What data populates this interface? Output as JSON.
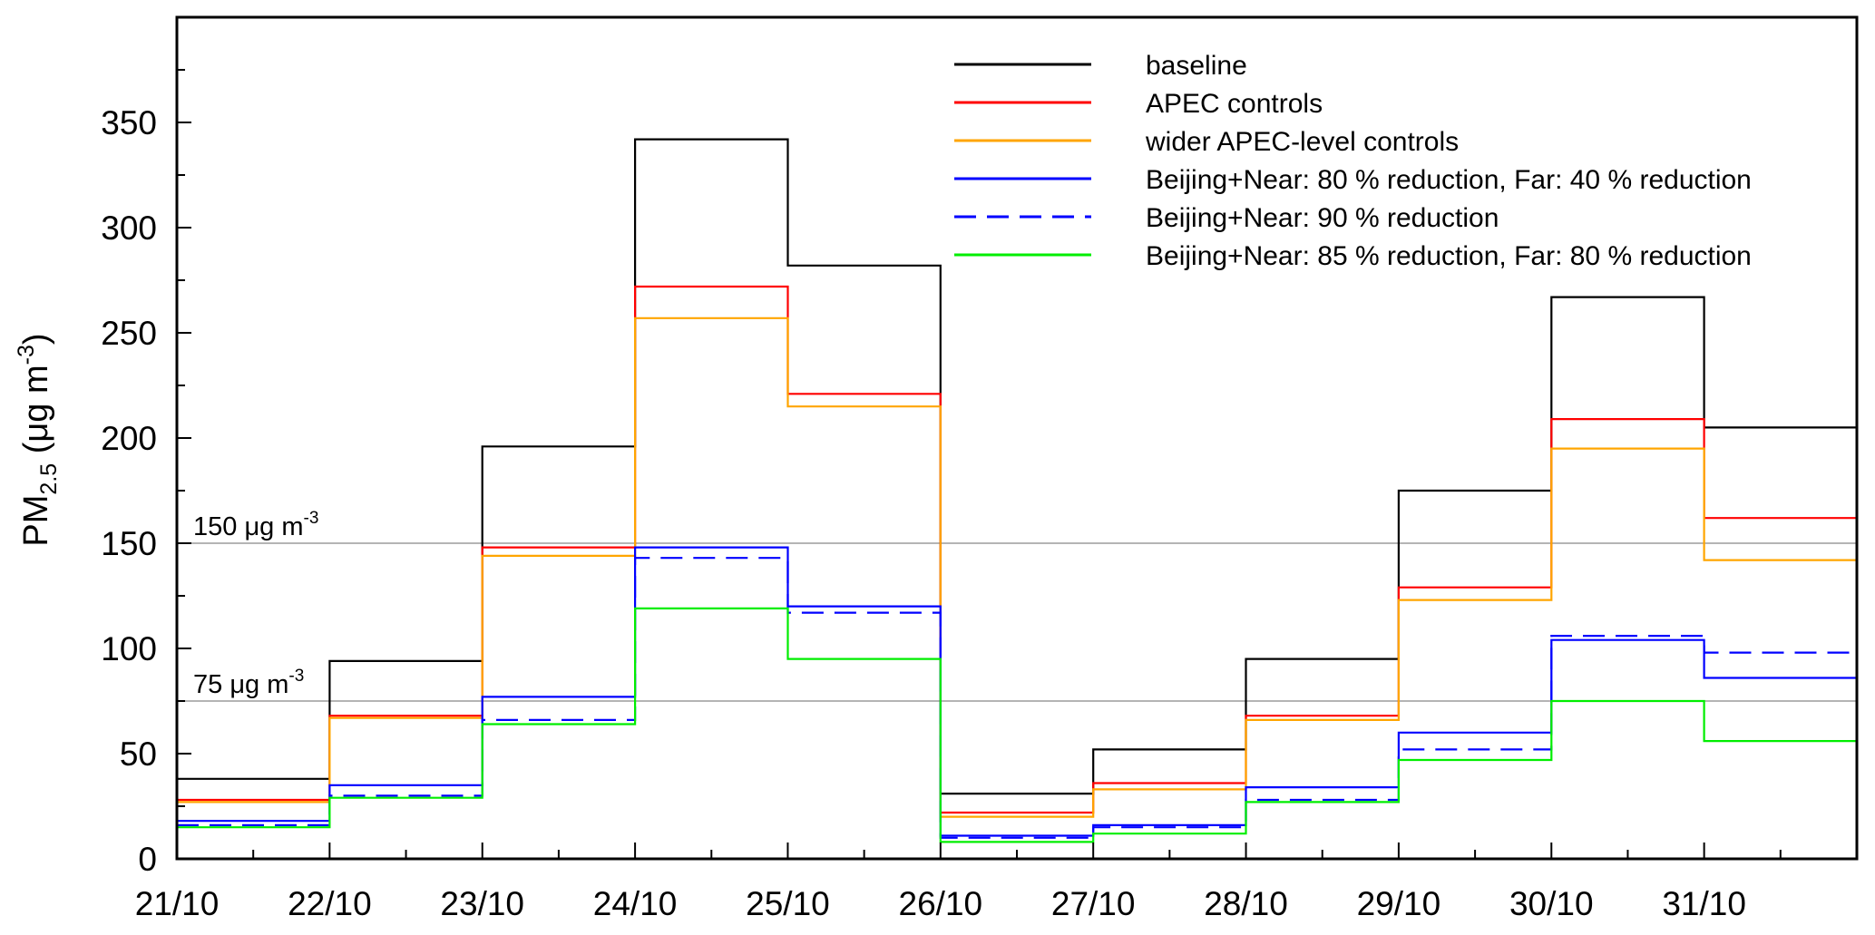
{
  "chart_data": {
    "type": "line",
    "title": "",
    "xlabel": "",
    "ylabel": {
      "main": "PM",
      "subscript": "2.5",
      "unit_open": " (",
      "unit_mu": "μ",
      "unit_g": "g m",
      "unit_exp": "-3",
      "unit_close": ")"
    },
    "ylim": [
      0,
      400
    ],
    "yticks": [
      0,
      50,
      100,
      150,
      200,
      250,
      300,
      350
    ],
    "xlim": [
      0,
      11
    ],
    "x_tick_labels": [
      "21/10",
      "22/10",
      "23/10",
      "24/10",
      "25/10",
      "26/10",
      "27/10",
      "28/10",
      "29/10",
      "30/10",
      "31/10"
    ],
    "grid": false,
    "legend_position": "top-right",
    "reference_lines": [
      {
        "value": 150,
        "label_num": "150 ",
        "label_mu": "μ",
        "label_unit": "g m",
        "label_exp": "-3",
        "color": "#b4b4b4"
      },
      {
        "value": 75,
        "label_num": "75 ",
        "label_mu": "μ",
        "label_unit": "g m",
        "label_exp": "-3",
        "color": "#b4b4b4"
      }
    ],
    "series": [
      {
        "name": "baseline",
        "color": "#000000",
        "dash": "solid",
        "values": [
          38,
          94,
          196,
          342,
          282,
          31,
          52,
          95,
          175,
          267,
          205
        ]
      },
      {
        "name": "APEC controls",
        "color": "#ff0000",
        "dash": "solid",
        "values": [
          28,
          68,
          148,
          272,
          221,
          22,
          36,
          68,
          129,
          209,
          162
        ]
      },
      {
        "name": "wider APEC-level controls",
        "color": "#ffa500",
        "dash": "solid",
        "values": [
          27,
          67,
          144,
          257,
          215,
          20,
          33,
          66,
          123,
          195,
          142
        ]
      },
      {
        "name": "Beijing+Near: 80 % reduction, Far: 40 % reduction",
        "color": "#0000ff",
        "dash": "solid",
        "values": [
          18,
          35,
          77,
          148,
          120,
          11,
          16,
          34,
          60,
          104,
          86
        ]
      },
      {
        "name": "Beijing+Near: 90 % reduction",
        "color": "#0000ff",
        "dash": "dashed",
        "values": [
          16,
          30,
          66,
          143,
          117,
          10,
          15,
          28,
          52,
          106,
          98
        ]
      },
      {
        "name": "Beijing+Near: 85 % reduction, Far: 80 % reduction",
        "color": "#00ee00",
        "dash": "solid",
        "values": [
          15,
          29,
          64,
          119,
          95,
          8,
          12,
          27,
          47,
          75,
          56
        ]
      }
    ]
  }
}
